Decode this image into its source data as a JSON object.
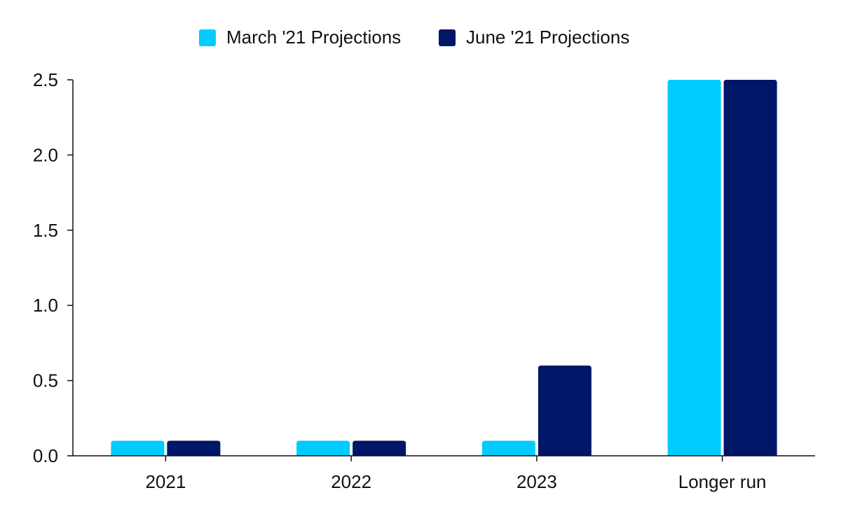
{
  "chart_data": {
    "type": "bar",
    "categories": [
      "2021",
      "2022",
      "2023",
      "Longer run"
    ],
    "series": [
      {
        "name": "March '21 Projections",
        "values": [
          0.1,
          0.1,
          0.1,
          2.5
        ],
        "color": "#00CCFF"
      },
      {
        "name": "June '21 Projections",
        "values": [
          0.1,
          0.1,
          0.6,
          2.5
        ],
        "color": "#001666"
      }
    ],
    "y_ticks": [
      "0.0",
      "0.5",
      "1.0",
      "1.5",
      "2.0",
      "2.5"
    ],
    "ylim": [
      0,
      2.5
    ],
    "grid": false,
    "legend_position": "top-center"
  }
}
